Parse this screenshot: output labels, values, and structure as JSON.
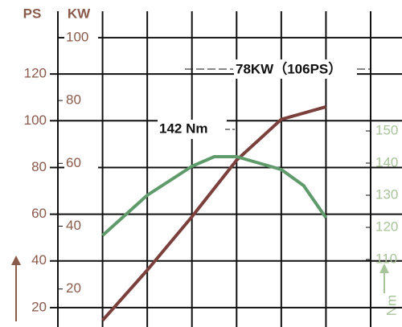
{
  "chart_data": {
    "type": "line",
    "y_label": "PS",
    "y2_label": "KW",
    "y3_label": "Nm",
    "xlim": [
      0,
      7
    ],
    "xgrid": [
      0,
      1,
      2,
      3,
      4,
      5,
      6,
      7
    ],
    "ylim": [
      11.7,
      151.7
    ],
    "yticks": [
      20,
      40,
      60,
      80,
      100,
      120
    ],
    "y2lim": [
      7.9,
      112
    ],
    "y2ticks": [
      20,
      40,
      60,
      80,
      100
    ],
    "y3lim": [
      89,
      190.75
    ],
    "y3ticks": [
      110,
      120,
      130,
      140,
      150
    ],
    "grid": true,
    "series": [
      {
        "name": "KW",
        "axis": "y2",
        "color": "#7b3f3c",
        "x": [
          1,
          2,
          3,
          4,
          5,
          6
        ],
        "values": [
          10,
          26,
          43,
          61,
          74,
          78
        ]
      },
      {
        "name": "Nm",
        "axis": "y3",
        "color": "#5f9a6b",
        "x": [
          1,
          2,
          3,
          3.5,
          4,
          5,
          5.5,
          6
        ],
        "values": [
          117.5,
          130,
          139,
          142,
          142,
          138,
          133,
          123
        ]
      }
    ],
    "annotations": [
      "78KW（106PS）",
      "142 Nm"
    ]
  }
}
